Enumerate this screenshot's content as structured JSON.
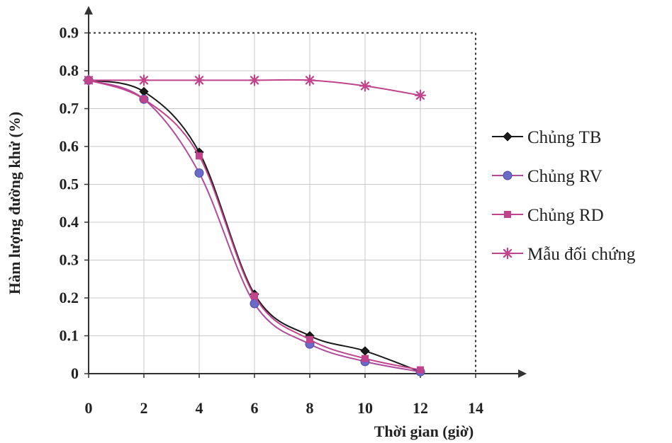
{
  "chart_data": {
    "type": "line",
    "title": "",
    "xlabel": "Thời gian (giờ)",
    "ylabel": "Hàm lượng đường khử (%)",
    "xlim": [
      0,
      14
    ],
    "ylim": [
      0,
      0.9
    ],
    "x_ticks": [
      "0",
      "2",
      "4",
      "6",
      "8",
      "10",
      "12",
      "14"
    ],
    "y_ticks": [
      "0",
      "0.1",
      "0.2",
      "0.3",
      "0.4",
      "0.5",
      "0.6",
      "0.7",
      "0.8",
      "0.9"
    ],
    "grid": true,
    "legend_position": "right",
    "x": [
      0,
      2,
      4,
      6,
      8,
      10,
      12
    ],
    "series": [
      {
        "name": "Chủng TB",
        "marker": "diamond",
        "color": "#1a1a1a",
        "values": [
          0.775,
          0.745,
          0.585,
          0.21,
          0.1,
          0.06,
          0.005
        ]
      },
      {
        "name": "Chủng RV",
        "marker": "circle",
        "color": "#6a6ac8",
        "values": [
          0.775,
          0.725,
          0.53,
          0.185,
          0.078,
          0.032,
          0.005
        ]
      },
      {
        "name": "Chủng RD",
        "marker": "square",
        "color": "#c0448c",
        "values": [
          0.775,
          0.725,
          0.575,
          0.205,
          0.09,
          0.04,
          0.01
        ]
      },
      {
        "name": "Mẫu đối chứng",
        "marker": "asterisk",
        "color": "#c0448c",
        "values": [
          0.775,
          0.775,
          0.775,
          0.775,
          0.775,
          0.76,
          0.735
        ]
      }
    ]
  }
}
